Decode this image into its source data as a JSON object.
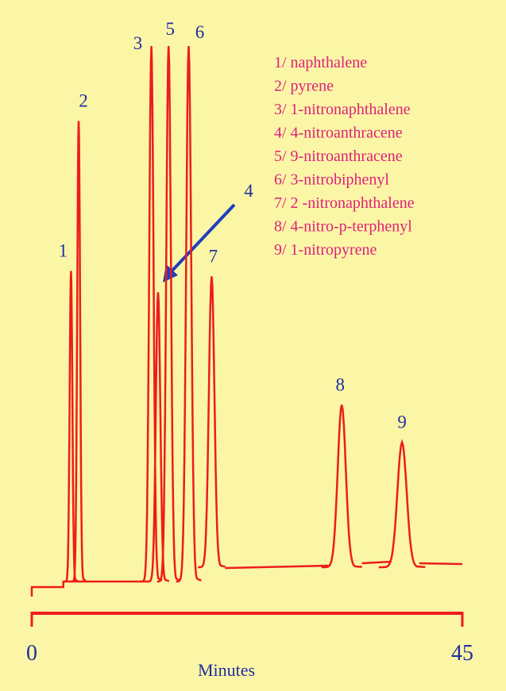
{
  "chart_data": {
    "type": "chromatogram",
    "xlabel": "Minutes",
    "xlim": [
      0,
      45
    ],
    "xticks": [
      0,
      45
    ],
    "ylim": [
      0,
      100
    ],
    "peaks": [
      {
        "label": "1",
        "x": 4.1,
        "height": 58
      },
      {
        "label": "2",
        "x": 4.9,
        "height": 86
      },
      {
        "label": "3",
        "x": 12.5,
        "height": 100
      },
      {
        "label": "4",
        "x": 13.2,
        "height": 54
      },
      {
        "label": "5",
        "x": 14.3,
        "height": 100
      },
      {
        "label": "6",
        "x": 16.4,
        "height": 100
      },
      {
        "label": "7",
        "x": 18.8,
        "height": 57
      },
      {
        "label": "8",
        "x": 32.4,
        "height": 33
      },
      {
        "label": "9",
        "x": 38.7,
        "height": 26
      }
    ],
    "legend": [
      "1/ naphthalene",
      "2/ pyrene",
      "3/ 1-nitronaphthalene",
      "4/ 4-nitroanthracene",
      "5/ 9-nitroanthracene",
      "6/ 3-nitrobiphenyl",
      "7/ 2 -nitronaphthalene",
      "8/ 4-nitro-p-terphenyl",
      "9/ 1-nitropyrene"
    ],
    "color": "#ee1c1c"
  }
}
